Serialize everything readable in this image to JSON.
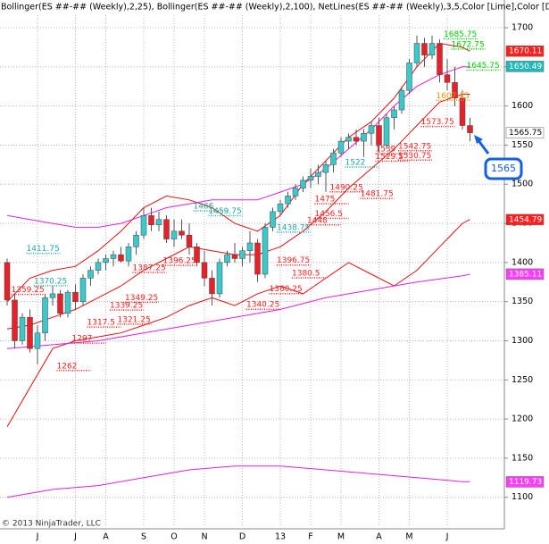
{
  "chart_data": {
    "type": "candlestick",
    "title": "Bollinger(ES ##-## (Weekly),2,25), Bollinger(ES ##-## (Weekly),2,100), NetLines(ES ##-## (Weekly),3,5,Color [Lime],Color [DarkOrange],Color [",
    "copyright": "© 2013 NinjaTrader, LLC",
    "categories": [
      null,
      null,
      null,
      null,
      "J",
      null,
      null,
      null,
      null,
      "J",
      null,
      null,
      null,
      "A",
      null,
      null,
      null,
      null,
      "S",
      null,
      null,
      null,
      "O",
      null,
      null,
      null,
      "N",
      null,
      null,
      null,
      null,
      "D",
      null,
      null,
      null,
      null,
      "13",
      null,
      null,
      null,
      "F",
      null,
      null,
      null,
      "M",
      null,
      null,
      null,
      null,
      "A",
      null,
      null,
      null,
      "M",
      null,
      null,
      null,
      null,
      "J",
      null,
      null,
      null
    ],
    "open": [
      1400,
      1352,
      1300,
      1330,
      1290,
      1310,
      1355,
      1360,
      1335,
      1362,
      1350,
      1380,
      1390,
      1400,
      1405,
      1410,
      1402,
      1420,
      1435,
      1460,
      1448,
      1455,
      1430,
      1440,
      1435,
      1420,
      1400,
      1380,
      1360,
      1400,
      1410,
      1405,
      1415,
      1425,
      1385,
      1445,
      1465,
      1475,
      1485,
      1495,
      1505,
      1510,
      1515,
      1525,
      1540,
      1555,
      1560,
      1555,
      1565,
      1575,
      1550,
      1585,
      1595,
      1620,
      1655,
      1680,
      1665,
      1680,
      1640,
      1630,
      1610,
      1575
    ],
    "high": [
      1405,
      1360,
      1335,
      1340,
      1320,
      1360,
      1370,
      1365,
      1365,
      1372,
      1385,
      1395,
      1405,
      1410,
      1415,
      1420,
      1425,
      1440,
      1470,
      1470,
      1465,
      1460,
      1455,
      1455,
      1450,
      1425,
      1415,
      1390,
      1405,
      1415,
      1425,
      1420,
      1440,
      1430,
      1450,
      1470,
      1480,
      1490,
      1500,
      1510,
      1520,
      1525,
      1530,
      1545,
      1560,
      1565,
      1570,
      1570,
      1580,
      1585,
      1590,
      1600,
      1625,
      1660,
      1690,
      1687,
      1690,
      1685,
      1660,
      1650,
      1620,
      1585
    ],
    "low": [
      1345,
      1290,
      1295,
      1285,
      1270,
      1300,
      1345,
      1330,
      1330,
      1340,
      1345,
      1370,
      1385,
      1390,
      1395,
      1400,
      1395,
      1410,
      1430,
      1440,
      1440,
      1425,
      1420,
      1430,
      1410,
      1395,
      1370,
      1345,
      1355,
      1395,
      1400,
      1395,
      1400,
      1375,
      1380,
      1440,
      1460,
      1470,
      1480,
      1490,
      1495,
      1500,
      1490,
      1515,
      1535,
      1545,
      1550,
      1535,
      1550,
      1540,
      1545,
      1570,
      1590,
      1615,
      1650,
      1650,
      1660,
      1630,
      1620,
      1600,
      1570,
      1555
    ],
    "close": [
      1352,
      1300,
      1330,
      1290,
      1310,
      1355,
      1360,
      1335,
      1362,
      1350,
      1380,
      1390,
      1400,
      1405,
      1410,
      1402,
      1420,
      1435,
      1460,
      1448,
      1455,
      1430,
      1440,
      1435,
      1420,
      1400,
      1380,
      1360,
      1400,
      1410,
      1405,
      1415,
      1425,
      1385,
      1445,
      1465,
      1475,
      1485,
      1495,
      1505,
      1510,
      1515,
      1525,
      1540,
      1555,
      1560,
      1555,
      1565,
      1575,
      1550,
      1585,
      1595,
      1620,
      1655,
      1680,
      1665,
      1680,
      1640,
      1630,
      1610,
      1575,
      1565.75
    ],
    "up_color": "#3cc8c8",
    "down_color": "#e8202a",
    "bands": [
      {
        "color": "#e01010",
        "x": [
          0,
          3,
          6,
          9,
          12,
          15,
          18,
          21,
          24,
          27,
          30,
          33,
          36,
          39,
          42,
          45,
          48,
          51,
          54,
          57,
          60,
          61
        ],
        "values": [
          1350,
          1380,
          1390,
          1395,
          1415,
          1440,
          1470,
          1485,
          1480,
          1470,
          1450,
          1440,
          1460,
          1500,
          1530,
          1560,
          1580,
          1610,
          1650,
          1680,
          1675,
          1670
        ]
      },
      {
        "color": "#e01010",
        "x": [
          0,
          3,
          6,
          9,
          12,
          15,
          18,
          21,
          24,
          27,
          30,
          33,
          36,
          39,
          42,
          45,
          48,
          51,
          54,
          57,
          60,
          61
        ],
        "values": [
          1315,
          1320,
          1330,
          1340,
          1355,
          1370,
          1390,
          1405,
          1420,
          1415,
          1410,
          1410,
          1420,
          1440,
          1465,
          1495,
          1520,
          1545,
          1575,
          1605,
          1615,
          1615
        ]
      },
      {
        "color": "#e01010",
        "x": [
          0,
          3,
          6,
          9,
          12,
          15,
          18,
          21,
          24,
          27,
          30,
          33,
          36,
          39,
          42,
          45,
          48,
          51,
          54,
          57,
          60,
          61
        ],
        "values": [
          1190,
          1240,
          1290,
          1300,
          1305,
          1310,
          1320,
          1330,
          1345,
          1355,
          1345,
          1360,
          1370,
          1360,
          1380,
          1400,
          1385,
          1370,
          1390,
          1420,
          1450,
          1455
        ]
      },
      {
        "color": "#e020e0",
        "x": [
          0,
          3,
          6,
          9,
          12,
          15,
          18,
          21,
          24,
          27,
          30,
          33,
          36,
          39,
          42,
          45,
          48,
          51,
          54,
          57,
          60,
          61
        ],
        "values": [
          1460,
          1455,
          1450,
          1445,
          1445,
          1450,
          1460,
          1470,
          1475,
          1480,
          1480,
          1480,
          1490,
          1500,
          1520,
          1545,
          1570,
          1600,
          1625,
          1640,
          1650,
          1650
        ]
      },
      {
        "color": "#e020e0",
        "x": [
          0,
          6,
          12,
          18,
          24,
          30,
          36,
          42,
          48,
          54,
          60,
          61
        ],
        "values": [
          1290,
          1295,
          1300,
          1310,
          1320,
          1330,
          1340,
          1355,
          1365,
          1375,
          1383,
          1385
        ]
      },
      {
        "color": "#e020e0",
        "x": [
          0,
          6,
          12,
          18,
          24,
          30,
          36,
          42,
          48,
          54,
          60,
          61
        ],
        "values": [
          1100,
          1110,
          1115,
          1125,
          1135,
          1140,
          1140,
          1135,
          1130,
          1125,
          1120,
          1120
        ]
      }
    ],
    "netlines": [
      {
        "value": 1685.75,
        "color": "#00d000",
        "week": 58
      },
      {
        "value": 1672.75,
        "color": "#00d000",
        "week": 59
      },
      {
        "value": 1645.75,
        "color": "#00d000",
        "week": 61
      },
      {
        "value": 1607.25,
        "color": "#ff8c00",
        "week": 57
      },
      {
        "value": 1573.75,
        "color": "#ff2020",
        "week": 55
      },
      {
        "value": 1542.75,
        "color": "#ff2020",
        "week": 52
      },
      {
        "value": 1539,
        "color": "#ff2020",
        "week": 49
      },
      {
        "value": 1530.75,
        "color": "#ff2020",
        "week": 52
      },
      {
        "value": 1529.5,
        "color": "#ff2020",
        "week": 49
      },
      {
        "value": 1522,
        "color": "#26a6a6",
        "week": 45
      },
      {
        "value": 1490.25,
        "color": "#ff2020",
        "week": 43
      },
      {
        "value": 1481.75,
        "color": "#ff2020",
        "week": 47
      },
      {
        "value": 1475,
        "color": "#ff2020",
        "week": 41
      },
      {
        "value": 1456.5,
        "color": "#ff2020",
        "week": 41
      },
      {
        "value": 1448,
        "color": "#ff2020",
        "week": 40
      },
      {
        "value": 1466,
        "color": "#26a6a6",
        "week": 25
      },
      {
        "value": 1459.75,
        "color": "#26a6a6",
        "week": 27
      },
      {
        "value": 1438.75,
        "color": "#26a6a6",
        "week": 36
      },
      {
        "value": 1411.75,
        "color": "#26a6a6",
        "week": 3
      },
      {
        "value": 1396.25,
        "color": "#ff2020",
        "week": 21
      },
      {
        "value": 1387.25,
        "color": "#ff2020",
        "week": 17
      },
      {
        "value": 1396.75,
        "color": "#ff2020",
        "week": 36
      },
      {
        "value": 1380.5,
        "color": "#ff2020",
        "week": 38
      },
      {
        "value": 1370.25,
        "color": "#26a6a6",
        "week": 4
      },
      {
        "value": 1360.25,
        "color": "#ff2020",
        "week": 35
      },
      {
        "value": 1359.25,
        "color": "#ff2020",
        "week": 1
      },
      {
        "value": 1349.25,
        "color": "#ff2020",
        "week": 16
      },
      {
        "value": 1340.25,
        "color": "#ff2020",
        "week": 32
      },
      {
        "value": 1339.25,
        "color": "#ff2020",
        "week": 14
      },
      {
        "value": 1321.25,
        "color": "#ff2020",
        "week": 15
      },
      {
        "value": 1317.5,
        "color": "#ff2020",
        "week": 11
      },
      {
        "value": 1297,
        "color": "#ff2020",
        "week": 9
      },
      {
        "value": 1262,
        "color": "#ff2020",
        "week": 7
      }
    ],
    "price_tags": [
      {
        "value": 1670.11,
        "color": "#ff1e1e"
      },
      {
        "value": 1650.49,
        "color": "#22b8b8"
      },
      {
        "value": 1565.75,
        "color": "#ffffff"
      },
      {
        "value": 1454.79,
        "color": "#ff1e1e"
      },
      {
        "value": 1385.11,
        "color": "#ff3cff"
      },
      {
        "value": 1119.73,
        "color": "#ff3cff"
      }
    ],
    "callout": 1565,
    "ylim": [
      1062,
      1716
    ],
    "yticks": [
      1100,
      1150,
      1200,
      1250,
      1300,
      1350,
      1400,
      1450,
      1500,
      1550,
      1600,
      1650,
      1700
    ],
    "grid": true
  }
}
